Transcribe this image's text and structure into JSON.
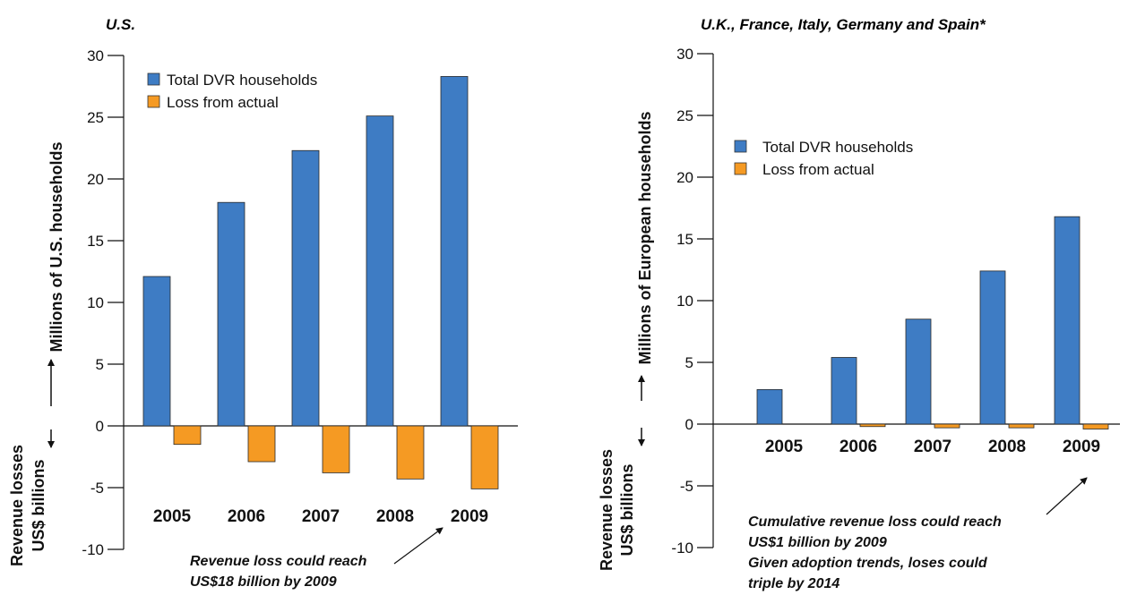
{
  "colors": {
    "total": "#3e7cc4",
    "loss": "#f59a23"
  },
  "chart_data": [
    {
      "type": "bar",
      "title": "U.S.",
      "ylabel": "Millions of U.S. households",
      "ylabel_secondary": [
        "Revenue losses",
        "US$ billions"
      ],
      "categories": [
        "2005",
        "2006",
        "2007",
        "2008",
        "2009"
      ],
      "series": [
        {
          "name": "Total DVR households",
          "values": [
            12.1,
            18.1,
            22.3,
            25.1,
            28.3
          ]
        },
        {
          "name": "Loss from actual",
          "values": [
            -1.5,
            -2.9,
            -3.8,
            -4.3,
            -5.1
          ]
        }
      ],
      "ylim": [
        -10,
        30
      ],
      "yticks": [
        -10,
        -5,
        0,
        5,
        10,
        15,
        20,
        25,
        30
      ],
      "grid": false,
      "legend": "top-left",
      "annotations": [
        "Revenue loss could reach",
        "US$18 billion by 2009"
      ]
    },
    {
      "type": "bar",
      "title": "U.K., France, Italy, Germany and Spain*",
      "ylabel": "Millions of European households",
      "ylabel_secondary": [
        "Revenue losses",
        "US$ billions"
      ],
      "categories": [
        "2005",
        "2006",
        "2007",
        "2008",
        "2009"
      ],
      "series": [
        {
          "name": "Total DVR households",
          "values": [
            2.8,
            5.4,
            8.5,
            12.4,
            16.8
          ]
        },
        {
          "name": "Loss from actual",
          "values": [
            0,
            -0.2,
            -0.3,
            -0.3,
            -0.4
          ]
        }
      ],
      "ylim": [
        -10,
        30
      ],
      "yticks": [
        -10,
        -5,
        0,
        5,
        10,
        15,
        20,
        25,
        30
      ],
      "grid": false,
      "legend": "upper-left",
      "annotations": [
        "Cumulative revenue loss could reach",
        "US$1 billion by 2009",
        "Given adoption trends, loses could",
        "triple by 2014"
      ]
    }
  ]
}
